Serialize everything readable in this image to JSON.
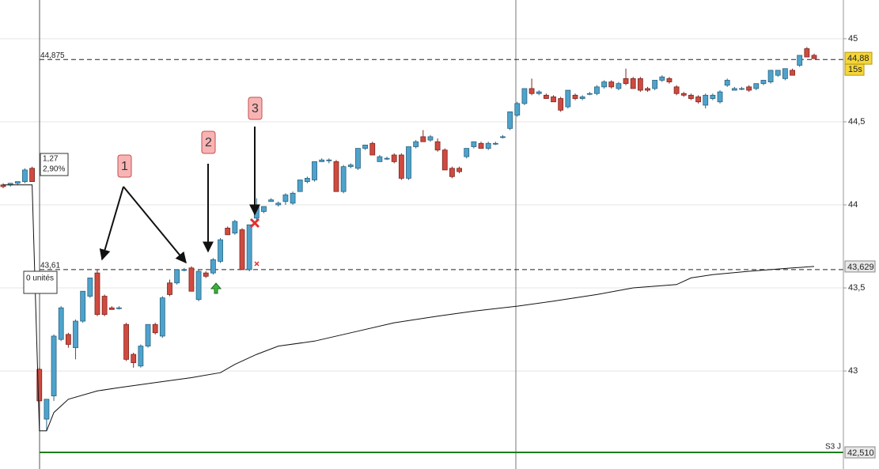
{
  "chart_data": {
    "type": "candlestick",
    "ylim": [
      42.41,
      45.233
    ],
    "yticks": [
      43,
      {
        "value": 43.5,
        "label": "43,5"
      },
      44,
      {
        "value": 44.5,
        "label": "44,5"
      },
      45
    ],
    "grid": true,
    "up_color": "#4ea3cc",
    "down_color": "#cf4a40",
    "open": [
      44.12,
      44.12,
      44.13,
      44.14,
      44.22,
      43.01,
      42.71,
      42.85,
      43.19,
      43.22,
      43.14,
      43.3,
      43.45,
      43.59,
      43.45,
      43.38,
      43.38,
      43.28,
      43.1,
      43.03,
      43.15,
      43.28,
      43.21,
      43.53,
      43.53,
      43.61,
      43.62,
      43.43,
      43.59,
      43.59,
      43.66,
      43.86,
      43.83,
      43.85,
      43.61,
      43.92,
      43.96,
      44.02,
      44.0,
      44.02,
      44.01,
      44.08,
      44.14,
      44.15,
      44.26,
      44.27,
      44.26,
      44.08,
      44.23,
      44.22,
      44.34,
      44.37,
      44.26,
      44.28,
      44.3,
      44.3,
      44.16,
      44.35,
      44.41,
      44.39,
      44.38,
      44.33,
      44.22,
      44.22,
      44.29,
      44.35,
      44.37,
      44.34,
      44.37,
      44.41,
      44.46,
      44.54,
      44.61,
      44.7,
      44.67,
      44.66,
      44.65,
      44.64,
      44.59,
      44.66,
      44.64,
      44.67,
      44.67,
      44.71,
      44.74,
      44.7,
      44.76,
      44.76,
      44.76,
      44.7,
      44.7,
      44.75,
      44.76,
      44.71,
      44.67,
      44.66,
      44.65,
      44.6,
      44.64,
      44.62,
      44.72,
      44.69,
      44.7,
      44.71,
      44.7,
      44.73,
      44.74,
      44.78,
      44.76,
      44.81,
      44.84,
      44.94,
      44.9
    ],
    "high": [
      44.13,
      44.13,
      44.14,
      44.22,
      44.23,
      43.02,
      42.83,
      43.22,
      43.39,
      43.23,
      43.31,
      43.48,
      43.56,
      43.61,
      43.46,
      43.39,
      43.39,
      43.29,
      43.11,
      43.16,
      43.28,
      43.29,
      43.45,
      43.55,
      43.61,
      43.62,
      43.63,
      43.61,
      43.6,
      43.68,
      43.8,
      43.87,
      43.91,
      43.86,
      43.88,
      44.04,
      43.99,
      44.04,
      44.02,
      44.07,
      44.08,
      44.15,
      44.17,
      44.26,
      44.28,
      44.28,
      44.27,
      44.24,
      44.25,
      44.34,
      44.36,
      44.38,
      44.3,
      44.29,
      44.31,
      44.31,
      44.35,
      44.39,
      44.45,
      44.42,
      44.4,
      44.34,
      44.23,
      44.23,
      44.34,
      44.38,
      44.38,
      44.38,
      44.38,
      44.42,
      44.56,
      44.62,
      44.7,
      44.76,
      44.69,
      44.67,
      44.66,
      44.65,
      44.69,
      44.67,
      44.66,
      44.68,
      44.72,
      44.75,
      44.75,
      44.74,
      44.82,
      44.77,
      44.77,
      44.71,
      44.75,
      44.78,
      44.77,
      44.72,
      44.68,
      44.67,
      44.66,
      44.67,
      44.67,
      44.69,
      44.76,
      44.71,
      44.71,
      44.72,
      44.73,
      44.75,
      44.81,
      44.81,
      44.82,
      44.82,
      44.9,
      44.95,
      44.91
    ],
    "low": [
      44.1,
      44.11,
      44.12,
      44.13,
      44.14,
      42.71,
      42.64,
      42.82,
      43.18,
      43.14,
      43.07,
      43.29,
      43.44,
      43.33,
      43.33,
      43.37,
      43.37,
      43.06,
      43.02,
      43.02,
      43.14,
      43.22,
      43.2,
      43.45,
      43.52,
      43.6,
      43.48,
      43.42,
      43.56,
      43.58,
      43.65,
      43.82,
      43.82,
      43.61,
      43.6,
      43.91,
      43.95,
      44.02,
      43.99,
      44.0,
      44.0,
      44.08,
      44.13,
      44.14,
      44.26,
      44.25,
      44.08,
      44.07,
      44.22,
      44.21,
      44.33,
      44.3,
      44.26,
      44.27,
      44.25,
      44.15,
      44.15,
      44.34,
      44.38,
      44.38,
      44.32,
      44.21,
      44.16,
      44.19,
      44.28,
      44.34,
      44.34,
      44.33,
      44.36,
      44.4,
      44.45,
      44.53,
      44.6,
      44.66,
      44.66,
      44.64,
      44.62,
      44.56,
      44.58,
      44.63,
      44.63,
      44.66,
      44.66,
      44.7,
      44.7,
      44.69,
      44.72,
      44.7,
      44.68,
      44.68,
      44.69,
      44.74,
      44.73,
      44.66,
      44.65,
      44.63,
      44.61,
      44.58,
      44.63,
      44.61,
      44.71,
      44.69,
      44.69,
      44.68,
      44.69,
      44.72,
      44.73,
      44.77,
      44.75,
      44.78,
      44.83,
      44.89,
      44.88
    ],
    "close": [
      44.11,
      44.13,
      44.14,
      44.21,
      44.14,
      42.82,
      42.83,
      43.21,
      43.38,
      43.16,
      43.3,
      43.48,
      43.56,
      43.34,
      43.34,
      43.37,
      43.38,
      43.07,
      43.05,
      43.15,
      43.28,
      43.23,
      43.44,
      43.46,
      43.61,
      43.61,
      43.48,
      43.6,
      43.57,
      43.67,
      43.79,
      43.82,
      43.9,
      43.61,
      43.88,
      43.99,
      43.99,
      44.03,
      44.01,
      44.06,
      44.07,
      44.15,
      44.16,
      44.26,
      44.27,
      44.27,
      44.08,
      44.23,
      44.24,
      44.34,
      44.36,
      44.3,
      44.29,
      44.28,
      44.26,
      44.16,
      44.35,
      44.38,
      44.38,
      44.41,
      44.33,
      44.21,
      44.17,
      44.2,
      44.34,
      44.38,
      44.34,
      44.37,
      44.37,
      44.41,
      44.56,
      44.61,
      44.7,
      44.67,
      44.68,
      44.64,
      44.62,
      44.57,
      44.69,
      44.64,
      44.65,
      44.67,
      44.71,
      44.74,
      44.71,
      44.73,
      44.73,
      44.7,
      44.69,
      44.69,
      44.75,
      44.77,
      44.74,
      44.67,
      44.66,
      44.64,
      44.62,
      44.66,
      44.66,
      44.68,
      44.75,
      44.7,
      44.7,
      44.69,
      44.73,
      44.75,
      44.81,
      44.81,
      44.82,
      44.78,
      44.9,
      44.89,
      44.88
    ],
    "line": {
      "x": [
        0,
        4,
        5,
        6,
        7,
        9,
        13,
        16,
        21,
        26,
        30,
        32,
        35,
        38,
        43,
        49,
        54,
        60,
        65,
        71,
        76,
        82,
        87,
        93,
        95,
        98,
        103,
        109,
        112
      ],
      "values": [
        44.12,
        44.12,
        42.64,
        42.64,
        42.75,
        42.83,
        42.88,
        42.9,
        42.93,
        42.96,
        42.99,
        43.04,
        43.1,
        43.15,
        43.18,
        43.24,
        43.29,
        43.33,
        43.36,
        43.39,
        43.42,
        43.46,
        43.5,
        43.52,
        43.56,
        43.58,
        43.6,
        43.62,
        43.629
      ],
      "value_label": "43,629"
    },
    "levels": [
      {
        "value": 44.875,
        "label": "44,875"
      },
      {
        "value": 43.61,
        "label": "43,61"
      }
    ],
    "support": {
      "name": "S3 J",
      "value": 42.51,
      "label": "42,510",
      "color": "#1e7d1e"
    },
    "last": {
      "value": 44.88,
      "label": "44,88",
      "timer": "15s"
    },
    "info": [
      "1,27",
      "2,90%"
    ],
    "position_label": "0 unités",
    "annotations": [
      "1",
      "2",
      "3"
    ]
  }
}
